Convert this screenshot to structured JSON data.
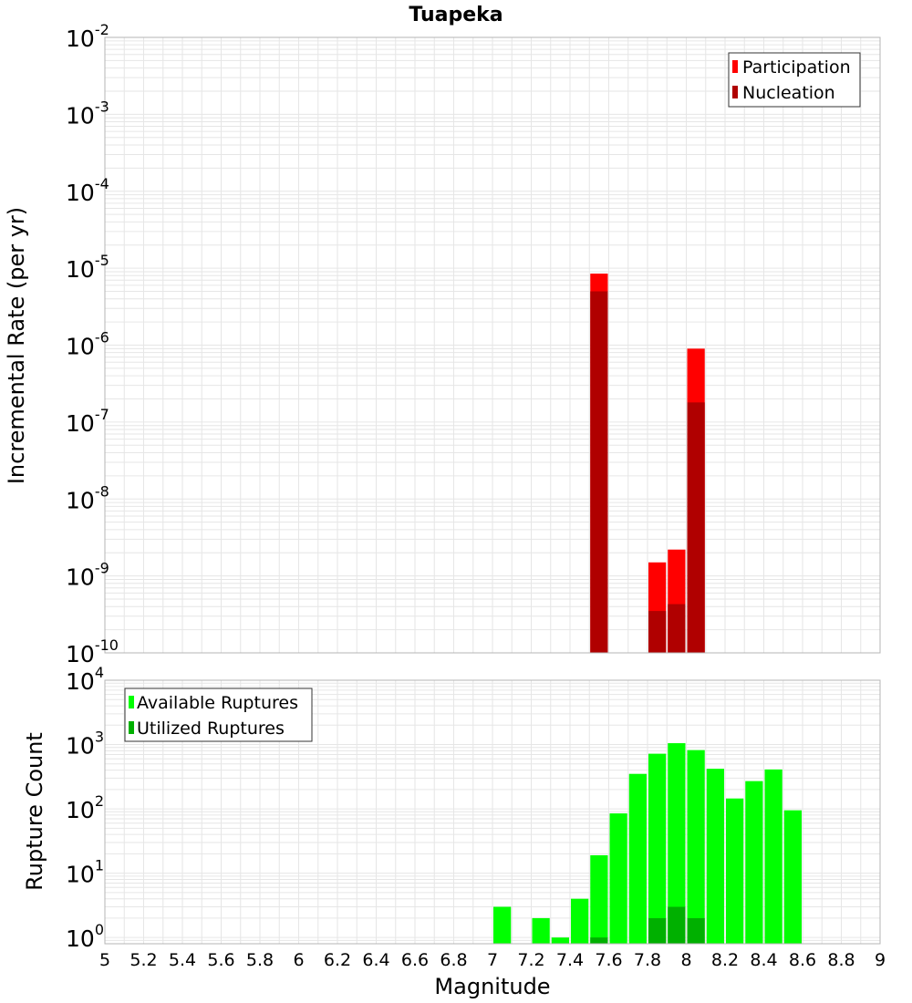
{
  "colors": {
    "participation": "#ff0000",
    "nucleation": "#b00000",
    "available": "#00ff00",
    "utilized": "#00b000",
    "grid": "#e6e6e6",
    "frame": "#b4b4b4"
  },
  "chart_data": [
    {
      "type": "bar",
      "title": "Tuapeka",
      "xlabel": "",
      "ylabel": "Incremental Rate (per yr)",
      "xlim": [
        5,
        9
      ],
      "ylim": [
        1e-10,
        0.01
      ],
      "yscale": "log",
      "grid": true,
      "legend_position": "top-right",
      "bin_width": 0.1,
      "y_tick_exponents": [
        "-2",
        "-3",
        "-4",
        "-5",
        "-6",
        "-7",
        "-8",
        "-9",
        "-10"
      ],
      "series": [
        {
          "name": "Participation",
          "x": [
            7.55,
            7.85,
            7.95,
            8.05
          ],
          "values": [
            8.5e-06,
            1.5e-09,
            2.2e-09,
            9e-07
          ]
        },
        {
          "name": "Nucleation",
          "x": [
            7.55,
            7.85,
            7.95,
            8.05
          ],
          "values": [
            5e-06,
            3.5e-10,
            4.3e-10,
            1.8e-07
          ]
        }
      ]
    },
    {
      "type": "bar",
      "xlabel": "Magnitude",
      "ylabel": "Rupture Count",
      "xlim": [
        5,
        9
      ],
      "ylim": [
        0.8,
        10000
      ],
      "yscale": "log",
      "grid": true,
      "legend_position": "top-left",
      "bin_width": 0.1,
      "x_ticks": [
        "5",
        "5.2",
        "5.4",
        "5.6",
        "5.8",
        "6",
        "6.2",
        "6.4",
        "6.6",
        "6.8",
        "7",
        "7.2",
        "7.4",
        "7.6",
        "7.8",
        "8",
        "8.2",
        "8.4",
        "8.6",
        "8.8",
        "9"
      ],
      "y_tick_exponents": [
        "4",
        "3",
        "2",
        "1",
        "0"
      ],
      "series": [
        {
          "name": "Available Ruptures",
          "x": [
            7.05,
            7.25,
            7.35,
            7.45,
            7.55,
            7.65,
            7.75,
            7.85,
            7.95,
            8.05,
            8.15,
            8.25,
            8.35,
            8.45,
            8.55
          ],
          "values": [
            3,
            2,
            1,
            4,
            19,
            85,
            350,
            720,
            1050,
            820,
            420,
            145,
            270,
            410,
            95
          ]
        },
        {
          "name": "Utilized Ruptures",
          "x": [
            7.55,
            7.85,
            7.95,
            8.05
          ],
          "values": [
            1,
            2,
            3,
            2
          ]
        }
      ]
    }
  ]
}
